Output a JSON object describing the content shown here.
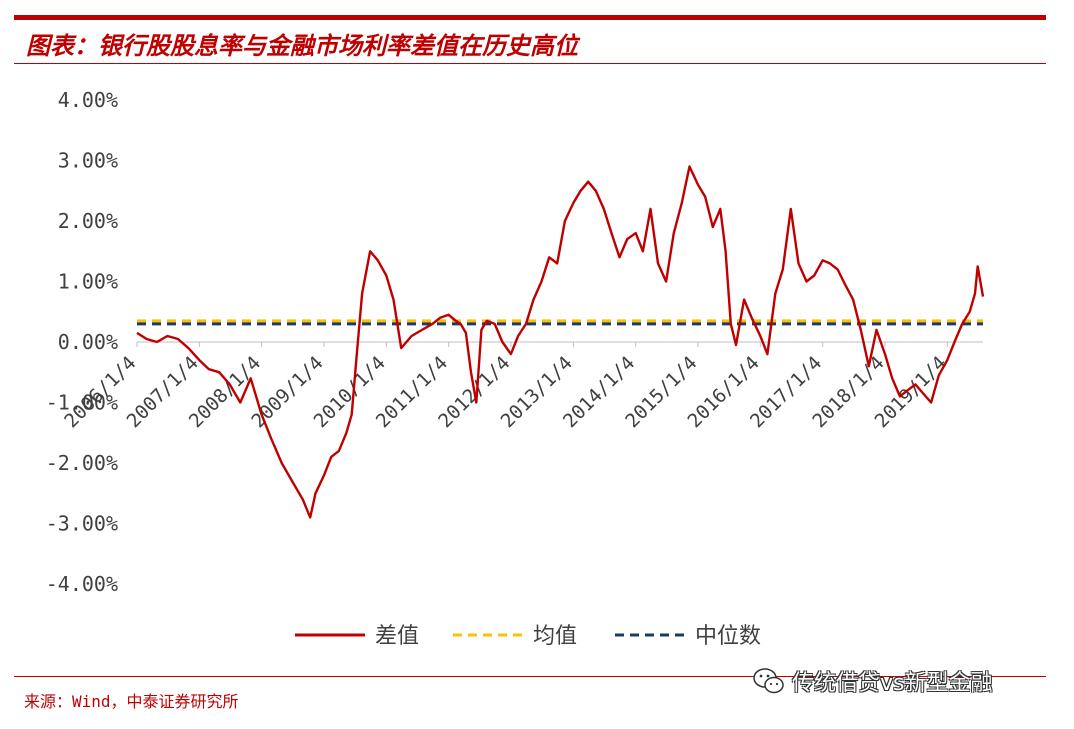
{
  "header": {
    "title": "图表：银行股股息率与金融市场利率差值在历史高位"
  },
  "footer": {
    "source": "来源：Wind，中泰证券研究所",
    "watermark_text": "传统借贷vs新型金融",
    "watermark_icon": "wechat-icon"
  },
  "colors": {
    "accent": "#c00000",
    "series_diff": "#c00000",
    "series_mean": "#ffc000",
    "series_median": "#1f3864"
  },
  "chart_data": {
    "type": "line",
    "title": "",
    "xlabel": "",
    "ylabel": "",
    "ylim": [
      -4,
      4
    ],
    "yticks": [
      "4.00%",
      "3.00%",
      "2.00%",
      "1.00%",
      "0.00%",
      "-1.00%",
      "-2.00%",
      "-3.00%",
      "-4.00%"
    ],
    "ytick_values": [
      4,
      3,
      2,
      1,
      0,
      -1,
      -2,
      -3,
      -4
    ],
    "xlim": [
      "2006/1/4",
      "2019/8/1"
    ],
    "xticks": [
      "2006/1/4",
      "2007/1/4",
      "2008/1/4",
      "2009/1/4",
      "2010/1/4",
      "2011/1/4",
      "2012/1/4",
      "2013/1/4",
      "2014/1/4",
      "2015/1/4",
      "2016/1/4",
      "2017/1/4",
      "2018/1/4",
      "2019/1/4"
    ],
    "grid": false,
    "legend": "bottom",
    "series": [
      {
        "name": "差值",
        "style": "solid",
        "x": [
          "2006/1/4",
          "2006/3/1",
          "2006/5/1",
          "2006/7/1",
          "2006/9/1",
          "2006/11/1",
          "2007/1/4",
          "2007/3/1",
          "2007/5/1",
          "2007/7/1",
          "2007/9/1",
          "2007/11/1",
          "2008/1/4",
          "2008/3/1",
          "2008/5/1",
          "2008/7/1",
          "2008/9/1",
          "2008/10/15",
          "2008/11/15",
          "2009/1/4",
          "2009/2/15",
          "2009/4/1",
          "2009/5/15",
          "2009/6/15",
          "2009/7/15",
          "2009/8/15",
          "2009/10/1",
          "2009/11/15",
          "2010/1/4",
          "2010/2/15",
          "2010/4/1",
          "2010/6/1",
          "2010/8/1",
          "2010/10/1",
          "2010/11/15",
          "2011/1/4",
          "2011/2/15",
          "2011/3/15",
          "2011/4/15",
          "2011/5/15",
          "2011/6/15",
          "2011/7/15",
          "2011/8/15",
          "2011/10/1",
          "2011/11/15",
          "2012/1/4",
          "2012/2/15",
          "2012/4/1",
          "2012/5/15",
          "2012/7/1",
          "2012/8/15",
          "2012/10/1",
          "2012/11/15",
          "2013/1/4",
          "2013/2/15",
          "2013/4/1",
          "2013/5/15",
          "2013/7/1",
          "2013/8/15",
          "2013/10/1",
          "2013/11/15",
          "2014/1/4",
          "2014/2/15",
          "2014/4/1",
          "2014/5/15",
          "2014/7/1",
          "2014/8/15",
          "2014/10/1",
          "2014/11/15",
          "2015/1/4",
          "2015/2/15",
          "2015/4/1",
          "2015/5/15",
          "2015/6/15",
          "2015/7/15",
          "2015/8/15",
          "2015/10/1",
          "2015/11/15",
          "2016/1/4",
          "2016/2/15",
          "2016/4/1",
          "2016/5/15",
          "2016/7/1",
          "2016/8/15",
          "2016/10/1",
          "2016/11/15",
          "2017/1/4",
          "2017/2/15",
          "2017/4/1",
          "2017/5/15",
          "2017/7/1",
          "2017/8/15",
          "2017/10/1",
          "2017/11/15",
          "2018/1/4",
          "2018/2/15",
          "2018/4/1",
          "2018/5/15",
          "2018/7/1",
          "2018/8/15",
          "2018/10/1",
          "2018/11/15",
          "2019/1/4",
          "2019/2/15",
          "2019/4/1",
          "2019/5/15",
          "2019/6/15",
          "2019/7/1",
          "2019/8/1"
        ],
        "y": [
          0.15,
          0.05,
          0.0,
          0.1,
          0.05,
          -0.1,
          -0.3,
          -0.45,
          -0.5,
          -0.7,
          -1.0,
          -0.6,
          -1.2,
          -1.6,
          -2.0,
          -2.3,
          -2.6,
          -2.9,
          -2.5,
          -2.2,
          -1.9,
          -1.8,
          -1.5,
          -1.2,
          -0.2,
          0.8,
          1.5,
          1.35,
          1.1,
          0.7,
          -0.1,
          0.1,
          0.2,
          0.3,
          0.4,
          0.45,
          0.35,
          0.3,
          0.15,
          -0.5,
          -1.0,
          0.2,
          0.35,
          0.3,
          0.0,
          -0.2,
          0.1,
          0.3,
          0.7,
          1.0,
          1.4,
          1.3,
          2.0,
          2.3,
          2.5,
          2.65,
          2.5,
          2.2,
          1.8,
          1.4,
          1.7,
          1.8,
          1.5,
          2.2,
          1.3,
          1.0,
          1.8,
          2.3,
          2.9,
          2.6,
          2.4,
          1.9,
          2.2,
          1.5,
          0.3,
          -0.05,
          0.7,
          0.4,
          0.1,
          -0.2,
          0.8,
          1.2,
          2.2,
          1.3,
          1.0,
          1.1,
          1.35,
          1.3,
          1.2,
          0.95,
          0.7,
          0.2,
          -0.4,
          0.2,
          -0.2,
          -0.6,
          -0.9,
          -0.8,
          -0.7,
          -0.85,
          -1.0,
          -0.55,
          -0.3,
          0.0,
          0.3,
          0.5,
          0.8,
          1.25,
          0.75
        ]
      },
      {
        "name": "均值",
        "style": "dashed",
        "value": 0.35
      },
      {
        "name": "中位数",
        "style": "dashed",
        "value": 0.3
      }
    ]
  }
}
